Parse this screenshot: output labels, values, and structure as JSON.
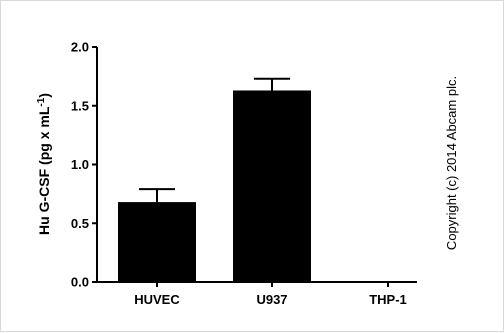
{
  "chart_data": {
    "type": "bar",
    "categories": [
      "HUVEC",
      "U937",
      "THP-1"
    ],
    "values": [
      0.68,
      1.63,
      0.0
    ],
    "errors": [
      0.11,
      0.1,
      0.0
    ],
    "title": "",
    "xlabel": "",
    "ylabel": "Hu G-CSF (pg x mL",
    "ylabel_superscript": "-1",
    "ylabel_suffix": ")",
    "ylim": [
      0,
      2.0
    ],
    "yticks": [
      0.0,
      0.5,
      1.0,
      1.5,
      2.0
    ],
    "ytick_labels": [
      "0.0",
      "0.5",
      "1.0",
      "1.5",
      "2.0"
    ],
    "grid": false,
    "bar_color": "#000000"
  },
  "watermark": "Copyright (c) 2014 Abcam plc."
}
